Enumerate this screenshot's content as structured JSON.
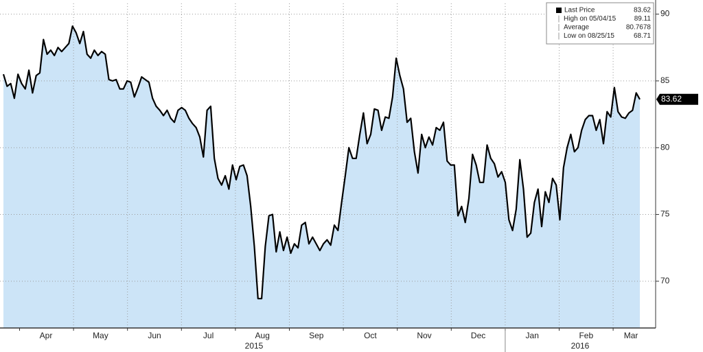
{
  "chart_data": {
    "type": "line",
    "series": [
      {
        "name": "Last Price",
        "color": "#000000",
        "fill": "#cce4f7",
        "values": [
          85.5,
          84.6,
          84.8,
          83.7,
          85.5,
          84.8,
          84.4,
          85.8,
          84.1,
          85.4,
          85.6,
          88.1,
          87.0,
          87.3,
          86.9,
          87.5,
          87.2,
          87.5,
          87.8,
          89.1,
          88.6,
          87.8,
          88.7,
          87.0,
          86.7,
          87.3,
          86.9,
          87.2,
          87.0,
          85.1,
          85.0,
          85.1,
          84.4,
          84.4,
          85.0,
          84.9,
          83.8,
          84.5,
          85.3,
          85.1,
          84.9,
          83.7,
          83.1,
          82.8,
          82.4,
          82.8,
          82.2,
          81.9,
          82.8,
          83.0,
          82.8,
          82.2,
          81.8,
          81.5,
          80.8,
          79.3,
          82.8,
          83.1,
          79.2,
          77.7,
          77.2,
          77.9,
          76.9,
          78.7,
          77.6,
          78.6,
          78.7,
          77.9,
          75.6,
          72.6,
          68.7,
          68.7,
          72.6,
          74.9,
          75.0,
          72.2,
          73.7,
          72.3,
          73.3,
          72.1,
          72.8,
          72.5,
          74.2,
          74.4,
          72.8,
          73.3,
          72.8,
          72.3,
          72.8,
          73.1,
          72.7,
          74.2,
          73.8,
          75.9,
          77.9,
          80.0,
          79.2,
          79.2,
          81.0,
          82.6,
          80.3,
          81.0,
          82.9,
          82.8,
          81.3,
          82.3,
          82.2,
          83.8,
          86.7,
          85.4,
          84.4,
          81.9,
          82.2,
          79.7,
          78.1,
          81.0,
          80.0,
          80.8,
          80.2,
          81.5,
          81.3,
          81.9,
          79.0,
          78.7,
          78.7,
          74.9,
          75.6,
          74.4,
          76.2,
          79.5,
          78.7,
          77.4,
          77.4,
          80.2,
          79.2,
          78.8,
          77.8,
          78.2,
          77.4,
          74.6,
          73.8,
          75.4,
          79.1,
          76.9,
          73.3,
          73.6,
          75.9,
          76.9,
          74.1,
          76.7,
          75.9,
          77.7,
          77.2,
          74.6,
          78.5,
          80.0,
          81.0,
          79.7,
          80.0,
          81.3,
          82.1,
          82.4,
          82.4,
          81.3,
          82.1,
          80.3,
          82.7,
          82.3,
          84.5,
          82.7,
          82.3,
          82.2,
          82.6,
          82.8,
          84.1,
          83.62
        ]
      }
    ],
    "legend": [
      {
        "label": "Last Price",
        "value": 83.62
      },
      {
        "label": "High on 05/04/15",
        "value": 89.11
      },
      {
        "label": "Average",
        "value": 80.7678
      },
      {
        "label": "Low on 08/25/15",
        "value": 68.71
      }
    ],
    "months": [
      "Apr",
      "May",
      "Jun",
      "Jul",
      "Aug",
      "Sep",
      "Oct",
      "Nov",
      "Dec",
      "Jan",
      "Feb",
      "Mar"
    ],
    "years": [
      "2015",
      "2016"
    ],
    "ylim": [
      66.5,
      90.8
    ],
    "yticks": [
      70,
      75,
      80,
      85,
      90
    ],
    "grid": true
  }
}
